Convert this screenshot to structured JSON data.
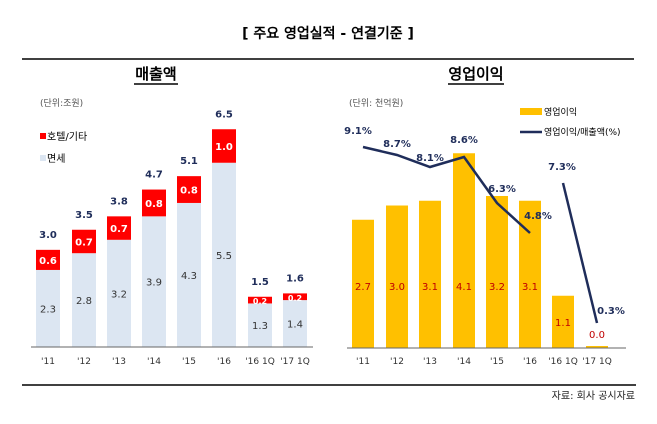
{
  "header": {
    "title": "[ 주요 영업실적 - 연결기준 ]"
  },
  "source": "자료: 회사 공시자료",
  "colors": {
    "duty_free": "#dce6f2",
    "hotel_other": "#ff0000",
    "op_profit": "#ffc000",
    "margin_line": "#1f2d5a",
    "total_label": "#1f2d5a",
    "op_label": "#c00000"
  },
  "chart_data": [
    {
      "type": "bar",
      "stacked": true,
      "title": "매출액",
      "unit_label": "(단위:조원)",
      "categories": [
        "'11",
        "'12",
        "'13",
        "'14",
        "'15",
        "'16",
        "'16 1Q",
        "'17 1Q"
      ],
      "series": [
        {
          "name": "면세",
          "values": [
            2.3,
            2.8,
            3.2,
            3.9,
            4.3,
            5.5,
            1.3,
            1.4
          ]
        },
        {
          "name": "호텔/기타",
          "values": [
            0.6,
            0.7,
            0.7,
            0.8,
            0.8,
            1.0,
            0.2,
            0.2
          ]
        }
      ],
      "totals": [
        3.0,
        3.5,
        3.8,
        4.7,
        5.1,
        6.5,
        1.5,
        1.6
      ],
      "legend_position": "top-left",
      "grid": false
    },
    {
      "type": "bar+line",
      "title": "영업이익",
      "unit_label": "(단위: 천억원)",
      "categories": [
        "'11",
        "'12",
        "'13",
        "'14",
        "'15",
        "'16",
        "'16 1Q",
        "'17 1Q"
      ],
      "series": [
        {
          "name": "영업이익",
          "type": "bar",
          "values": [
            2.7,
            3.0,
            3.1,
            4.1,
            3.2,
            3.1,
            1.1,
            0.0
          ]
        },
        {
          "name": "영업이익/매출액(%)",
          "type": "line",
          "values": [
            9.1,
            8.7,
            8.1,
            8.6,
            6.3,
            4.8,
            7.3,
            0.3
          ],
          "labels": [
            "9.1%",
            "8.7%",
            "8.1%",
            "8.6%",
            "6.3%",
            "4.8%",
            "7.3%",
            "0.3%"
          ],
          "segments": [
            [
              0,
              5
            ],
            [
              6,
              7
            ]
          ]
        }
      ],
      "legend_position": "top-right",
      "grid": false
    }
  ]
}
